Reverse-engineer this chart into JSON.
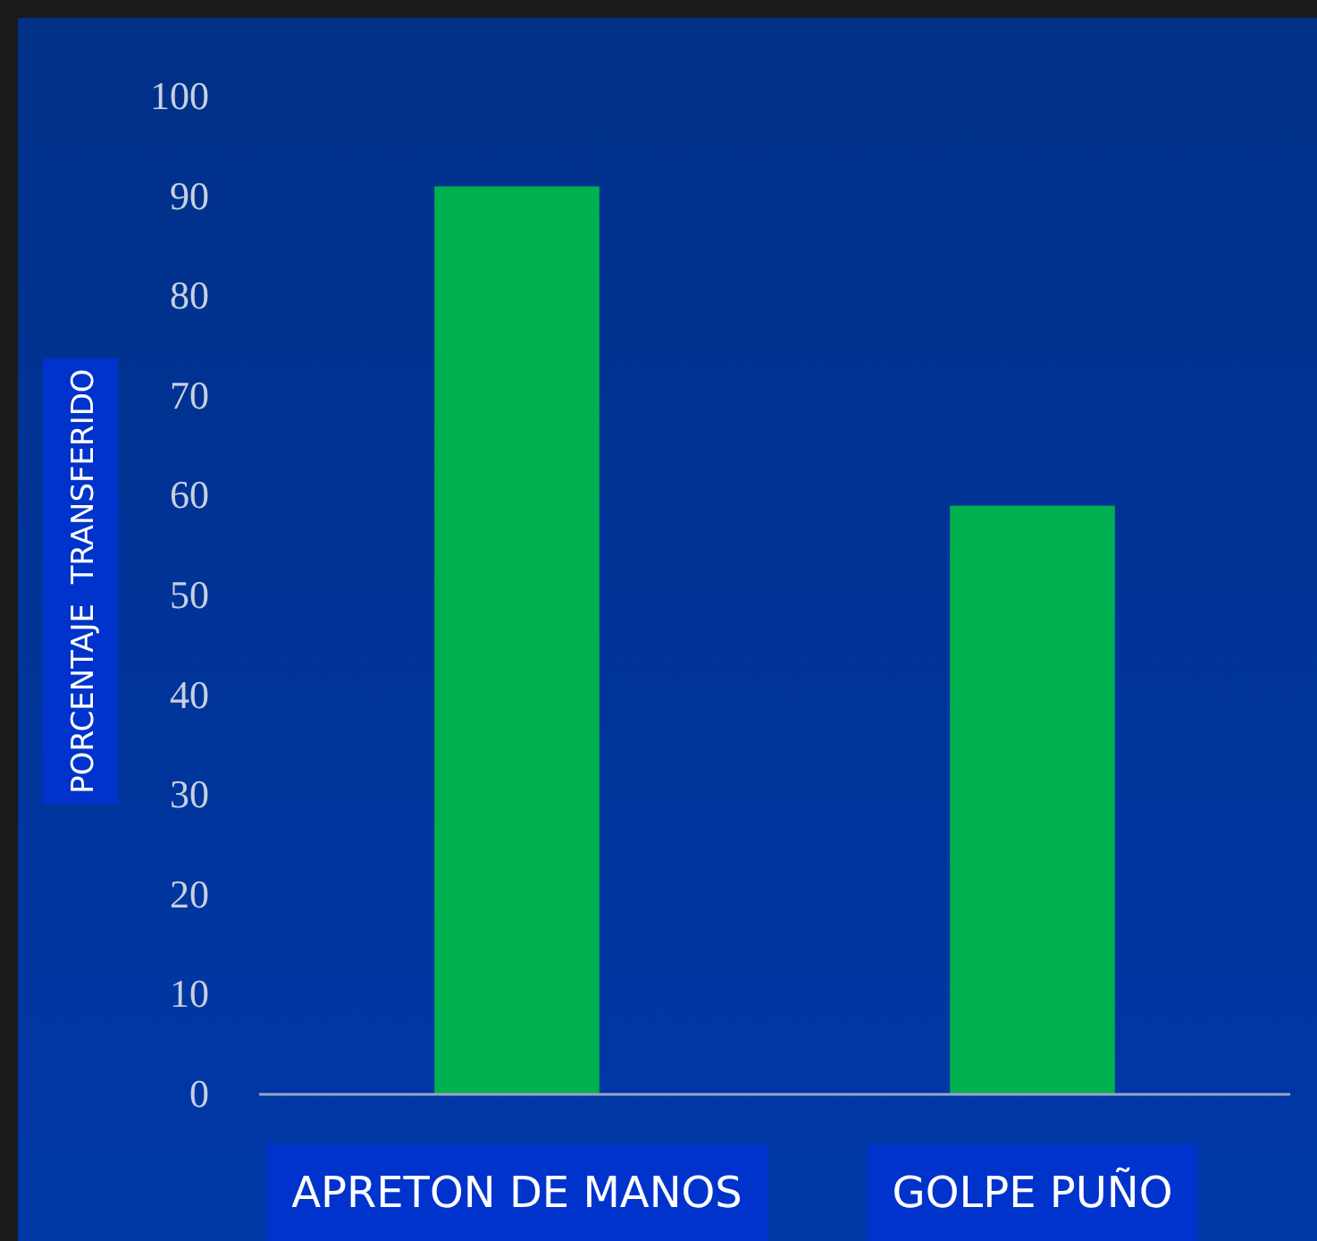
{
  "chart_data": {
    "type": "bar",
    "ylabel": "PORCENTAJE  TRANSFERIDO",
    "categories": [
      "APRETON DE MANOS",
      "GOLPE PUÑO"
    ],
    "values": [
      91,
      59
    ],
    "color": "#00b050",
    "ylim": [
      0,
      100
    ],
    "yticks": [
      0,
      10,
      20,
      30,
      40,
      50,
      60,
      70,
      80,
      90,
      100
    ],
    "grid": false
  }
}
